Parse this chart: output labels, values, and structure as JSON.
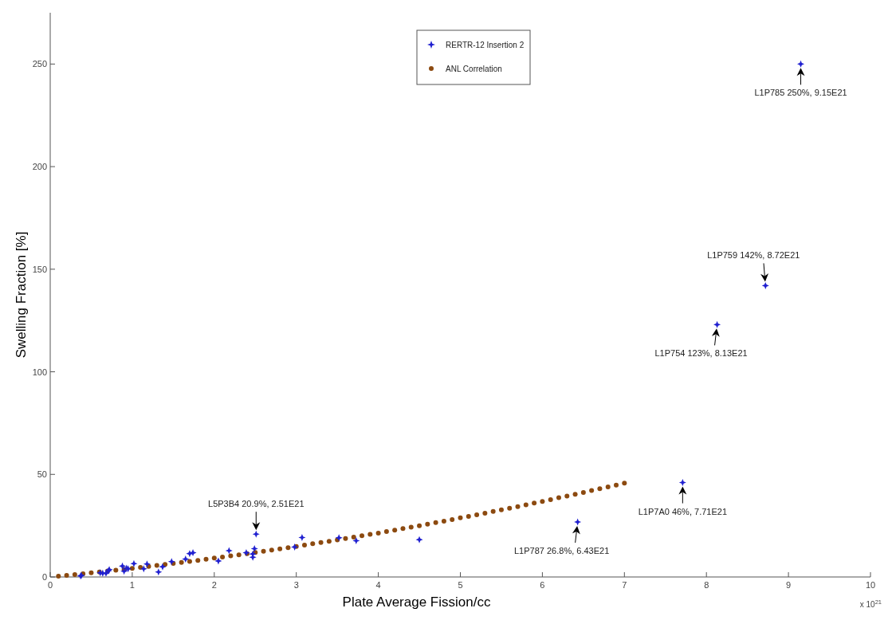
{
  "chart_data": {
    "type": "scatter",
    "xlabel": "Plate Average Fission/cc",
    "ylabel": "Swelling Fraction [%]",
    "xlim": [
      0,
      10
    ],
    "xticks": [
      0,
      1,
      2,
      3,
      4,
      5,
      6,
      7,
      8,
      9,
      10
    ],
    "ylim": [
      0,
      275
    ],
    "yticks": [
      0,
      50,
      100,
      150,
      200,
      250
    ],
    "grid": false,
    "legend": "top",
    "series": [
      {
        "name": "RERTR-12 Insertion 2",
        "marker": "star",
        "color": "#2020d0",
        "x": [
          0.38,
          0.37,
          0.61,
          0.64,
          0.68,
          0.71,
          0.72,
          0.88,
          0.9,
          0.93,
          0.95,
          1.02,
          1.14,
          1.18,
          1.32,
          1.37,
          1.48,
          1.65,
          1.7,
          1.74,
          2.05,
          2.18,
          2.39,
          2.47,
          2.47,
          2.49,
          2.51,
          2.98,
          3.07,
          3.52,
          3.73,
          4.5,
          6.43,
          7.71,
          8.13,
          8.72,
          9.15
        ],
        "values": [
          0.8,
          0.5,
          2.0,
          1.8,
          1.8,
          3.0,
          3.6,
          5.3,
          2.8,
          4.3,
          4.0,
          6.5,
          4.0,
          6.3,
          2.4,
          5.0,
          7.5,
          8.7,
          11.4,
          11.8,
          7.8,
          12.8,
          11.8,
          11.2,
          9.6,
          13.8,
          20.9,
          14.6,
          19.2,
          19.1,
          17.7,
          18.2,
          26.8,
          46,
          123,
          142,
          250
        ]
      },
      {
        "name": "ANL Correlation",
        "marker": "circle",
        "color": "#8c4a10",
        "x": [
          0.1,
          0.2,
          0.3,
          0.4,
          0.5,
          0.6,
          0.7,
          0.8,
          0.9,
          1.0,
          1.1,
          1.2,
          1.3,
          1.4,
          1.5,
          1.6,
          1.7,
          1.8,
          1.9,
          2.0,
          2.1,
          2.2,
          2.3,
          2.4,
          2.5,
          2.6,
          2.7,
          2.8,
          2.9,
          3.0,
          3.1,
          3.2,
          3.3,
          3.4,
          3.5,
          3.6,
          3.7,
          3.8,
          3.9,
          4.0,
          4.1,
          4.2,
          4.3,
          4.4,
          4.5,
          4.6,
          4.7,
          4.8,
          4.9,
          5.0,
          5.1,
          5.2,
          5.3,
          5.4,
          5.5,
          5.6,
          5.7,
          5.8,
          5.9,
          6.0,
          6.1,
          6.2,
          6.3,
          6.4,
          6.5,
          6.6,
          6.7,
          6.8,
          6.9,
          7.0
        ],
        "values": [
          0.4,
          0.8,
          1.2,
          1.6,
          2.0,
          2.4,
          2.9,
          3.3,
          3.7,
          4.2,
          4.7,
          5.1,
          5.6,
          6.1,
          6.6,
          7.1,
          7.6,
          8.1,
          8.6,
          9.2,
          9.7,
          10.3,
          10.8,
          11.4,
          11.9,
          12.5,
          13.1,
          13.7,
          14.3,
          14.9,
          15.5,
          16.2,
          16.8,
          17.4,
          18.1,
          18.7,
          19.4,
          20.1,
          20.8,
          21.4,
          22.1,
          22.8,
          23.6,
          24.3,
          25.0,
          25.7,
          26.5,
          27.2,
          28.0,
          28.8,
          29.5,
          30.3,
          31.1,
          31.9,
          32.7,
          33.5,
          34.3,
          35.2,
          36.0,
          36.8,
          37.7,
          38.6,
          39.4,
          40.3,
          41.2,
          42.1,
          43.0,
          43.9,
          44.8,
          45.7
        ]
      }
    ],
    "annotations": [
      {
        "text": "L5P3B4 20.9%, 2.51E21",
        "x": 2.51,
        "y": 20.9
      },
      {
        "text": "L1P787 26.8%, 6.43E21",
        "x": 6.43,
        "y": 26.8
      },
      {
        "text": "L1P7A0 46%, 7.71E21",
        "x": 7.71,
        "y": 46
      },
      {
        "text": "L1P754 123%, 8.13E21",
        "x": 8.13,
        "y": 123
      },
      {
        "text": "L1P759 142%, 8.72E21",
        "x": 8.72,
        "y": 142
      },
      {
        "text": "L1P785 250%, 9.15E21",
        "x": 9.15,
        "y": 250
      },
      "x 10$^{21}$"
    ]
  }
}
